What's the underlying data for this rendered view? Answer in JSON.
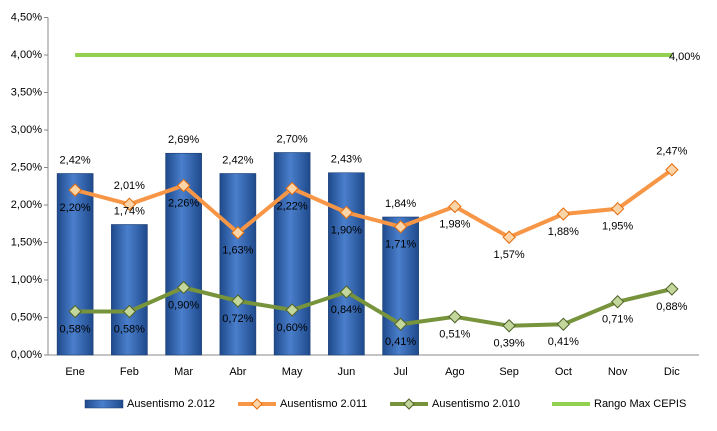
{
  "chart_data": {
    "type": "bar-line",
    "categories": [
      "Ene",
      "Feb",
      "Mar",
      "Abr",
      "May",
      "Jun",
      "Jul",
      "Ago",
      "Sep",
      "Oct",
      "Nov",
      "Dic"
    ],
    "ylim": [
      0,
      4.5
    ],
    "yticks": [
      {
        "value": 0,
        "label": "0,00%"
      },
      {
        "value": 0.5,
        "label": "0,50%"
      },
      {
        "value": 1,
        "label": "1,00%"
      },
      {
        "value": 1.5,
        "label": "1,50%"
      },
      {
        "value": 2,
        "label": "2,00%"
      },
      {
        "value": 2.5,
        "label": "2,50%"
      },
      {
        "value": 3,
        "label": "3,00%"
      },
      {
        "value": 3.5,
        "label": "3,50%"
      },
      {
        "value": 4,
        "label": "4,00%"
      },
      {
        "value": 4.5,
        "label": "4,50%"
      }
    ],
    "series": [
      {
        "name": "Ausentismo 2.012",
        "type": "bar",
        "color": "#2f5fa7",
        "values": [
          2.42,
          1.74,
          2.69,
          2.42,
          2.7,
          2.43,
          1.84,
          null,
          null,
          null,
          null,
          null
        ],
        "value_labels": [
          "2,42%",
          "1,74%",
          "2,69%",
          "2,42%",
          "2,70%",
          "2,43%",
          "1,84%",
          null,
          null,
          null,
          null,
          null
        ]
      },
      {
        "name": "Ausentismo 2.011",
        "type": "line",
        "color": "#f79646",
        "values": [
          2.2,
          2.01,
          2.26,
          1.63,
          2.22,
          1.9,
          1.71,
          1.98,
          1.57,
          1.88,
          1.95,
          2.47
        ],
        "value_labels": [
          "2,20%",
          "2,01%",
          "2,26%",
          "1,63%",
          "2,22%",
          "1,90%",
          "1,71%",
          "1,98%",
          "1,57%",
          "1,88%",
          "1,95%",
          "2,47%"
        ]
      },
      {
        "name": "Ausentismo 2.010",
        "type": "line",
        "color": "#77933c",
        "values": [
          0.58,
          0.58,
          0.9,
          0.72,
          0.6,
          0.84,
          0.41,
          0.51,
          0.39,
          0.41,
          0.71,
          0.88
        ],
        "value_labels": [
          "0,58%",
          "0,58%",
          "0,90%",
          "0,72%",
          "0,60%",
          "0,84%",
          "0,41%",
          "0,51%",
          "0,39%",
          "0,41%",
          "0,71%",
          "0,88%"
        ]
      },
      {
        "name": "Rango Max CEPIS",
        "type": "line",
        "color": "#92d050",
        "values": [
          4,
          4,
          4,
          4,
          4,
          4,
          4,
          4,
          4,
          4,
          4,
          4
        ],
        "value_labels": [
          null,
          null,
          null,
          null,
          null,
          null,
          null,
          null,
          null,
          null,
          null,
          "4,00%"
        ]
      }
    ]
  }
}
